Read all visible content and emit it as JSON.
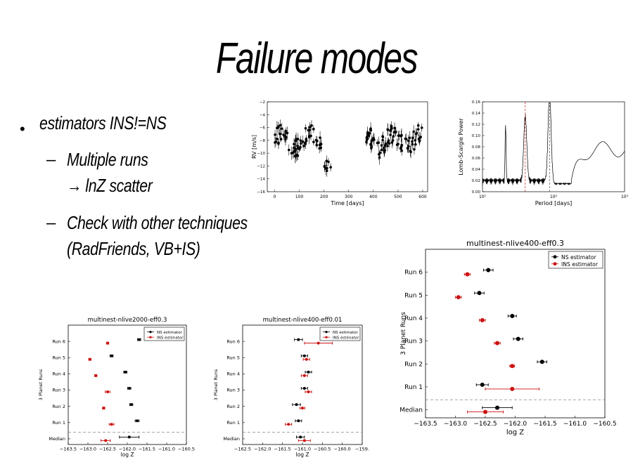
{
  "slide": {
    "title": "Failure modes",
    "bullet": "estimators INS!=NS",
    "sub1_line1": "Multiple runs",
    "sub1_line2": "→ lnZ scatter",
    "sub2_line1": "Check with other techniques",
    "sub2_line2": "(RadFriends, VB+IS)"
  },
  "chart_data": [
    {
      "type": "scatter",
      "title": "",
      "xlabel": "Time [days]",
      "ylabel": "RV [m/s]",
      "xlim": [
        -30,
        620
      ],
      "ylim": [
        -16,
        -2
      ],
      "xticks": [
        0,
        100,
        200,
        300,
        400,
        500,
        600
      ],
      "yticks": [
        -2,
        -4,
        -6,
        -8,
        -10,
        -12,
        -14,
        -16
      ]
    },
    {
      "type": "line",
      "title": "",
      "xlabel": "Period [days]",
      "ylabel": "Lomb-Scargle Power",
      "ylim": [
        0,
        0.16
      ],
      "yticks": [
        "0.00",
        "0.02",
        "0.04",
        "0.06",
        "0.08",
        "0.10",
        "0.12",
        "0.14",
        "0.16"
      ],
      "xticklabels": [
        "10¹",
        "10²",
        "10³"
      ],
      "peaks": [
        {
          "period": 40,
          "power": 0.115
        },
        {
          "period": 88,
          "power": 0.155
        }
      ]
    },
    {
      "type": "scatter",
      "title": "multinest-nlive400-eff0.3",
      "xlabel": "log Z",
      "ylabel": "3 Planet Runs",
      "xlim": [
        -163.5,
        -160.5
      ],
      "xticks": [
        "−163.5",
        "−163.0",
        "−162.5",
        "−162.0",
        "−161.5",
        "−161.0",
        "−160.5"
      ],
      "categories": [
        "Run 6",
        "Run 5",
        "Run 4",
        "Run 3",
        "Run 2",
        "Run 1",
        "Median"
      ],
      "series": [
        {
          "name": "NS estimator",
          "color": "#000000",
          "values": [
            -162.45,
            -162.6,
            -162.05,
            -161.95,
            -161.55,
            -162.55,
            -162.3
          ],
          "err": [
            0.08,
            0.08,
            0.07,
            0.08,
            0.08,
            0.1,
            0.25
          ]
        },
        {
          "name": "INS estimator",
          "color": "#cc1111",
          "values": [
            -162.8,
            -162.95,
            -162.55,
            -162.3,
            -162.05,
            -162.05,
            -162.5
          ],
          "err": [
            0.05,
            0.05,
            0.05,
            0.05,
            0.04,
            0.45,
            0.3
          ]
        }
      ],
      "median_separator": true
    },
    {
      "type": "scatter",
      "title": "multinest-nlive2000-eff0.3",
      "xlabel": "log Z",
      "ylabel": "3 Planet Runs",
      "xlim": [
        -163.5,
        -160.5
      ],
      "xticks": [
        "−163.5",
        "−163.0",
        "−162.5",
        "−162.0",
        "−161.5",
        "−161.0",
        "−160.5"
      ],
      "categories": [
        "Run 6",
        "Run 5",
        "Run 4",
        "Run 3",
        "Run 2",
        "Run 1",
        "Median"
      ],
      "series": [
        {
          "name": "NS estimator",
          "color": "#000000",
          "values": [
            -161.7,
            -162.4,
            -162.05,
            -161.95,
            -161.9,
            -161.75,
            -161.95
          ],
          "err": [
            0.04,
            0.04,
            0.04,
            0.04,
            0.04,
            0.05,
            0.25
          ]
        },
        {
          "name": "INS estimator",
          "color": "#cc1111",
          "values": [
            -162.5,
            -162.95,
            -162.8,
            -162.5,
            -162.6,
            -162.4,
            -162.55
          ],
          "err": [
            0.03,
            0.03,
            0.03,
            0.06,
            0.03,
            0.06,
            0.12
          ]
        }
      ],
      "median_separator": true
    },
    {
      "type": "scatter",
      "title": "multinest-nlive400-eff0.01",
      "xlabel": "log Z",
      "ylabel": "3 Planet Runs",
      "xlim": [
        -162.5,
        -159.5
      ],
      "xticks": [
        "−162.5",
        "−162.0",
        "−161.5",
        "−161.0",
        "−160.5",
        "−160.0",
        "−159."
      ],
      "categories": [
        "Run 6",
        "Run 5",
        "Run 4",
        "Run 3",
        "Run 2",
        "Run 1",
        "Median"
      ],
      "series": [
        {
          "name": "NS estimator",
          "color": "#000000",
          "values": [
            -161.1,
            -160.95,
            -160.85,
            -160.95,
            -161.15,
            -161.1,
            -161.05
          ],
          "err": [
            0.1,
            0.08,
            0.08,
            0.08,
            0.1,
            0.08,
            0.1
          ]
        },
        {
          "name": "INS estimator",
          "color": "#cc1111",
          "values": [
            -160.6,
            -160.9,
            -160.95,
            -160.85,
            -161.0,
            -161.35,
            -160.95
          ],
          "err": [
            0.35,
            0.08,
            0.08,
            0.08,
            0.06,
            0.08,
            0.15
          ]
        }
      ],
      "median_separator": true
    }
  ]
}
